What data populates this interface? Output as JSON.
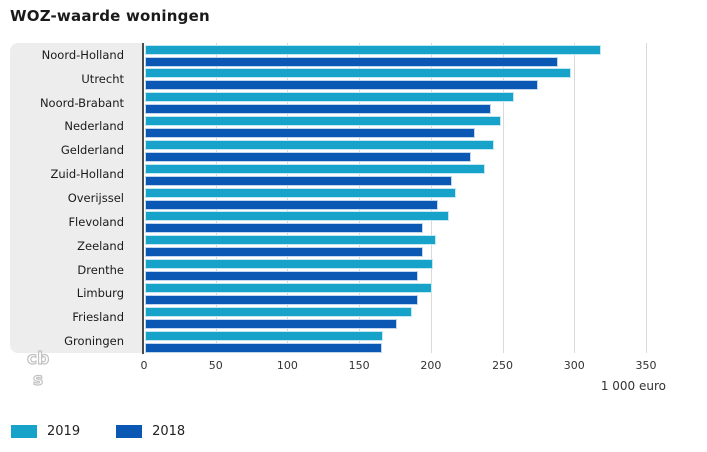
{
  "title": "WOZ-waarde woningen",
  "unit_label": "1 000 euro",
  "legend": {
    "items": [
      {
        "label": "2019",
        "color": "#17a3c9"
      },
      {
        "label": "2018",
        "color": "#0a58b4"
      }
    ]
  },
  "logo": {
    "name": "cbs-logo",
    "color": "#c2c2c2"
  },
  "colors": {
    "series_2019": "#17a3c9",
    "series_2018": "#0a58b4",
    "panel_bg": "#ededed",
    "gridline": "#d9d9d9",
    "axis_line": "#4d4d4d"
  },
  "chart_data": {
    "type": "bar",
    "orientation": "horizontal",
    "title": "WOZ-waarde woningen",
    "xlabel": "1 000 euro",
    "ylabel": "",
    "xlim": [
      0,
      350
    ],
    "xticks": [
      0,
      50,
      100,
      150,
      200,
      250,
      300,
      350
    ],
    "grid": true,
    "legend_position": "bottom-left",
    "categories": [
      "Noord-Holland",
      "Utrecht",
      "Noord-Brabant",
      "Nederland",
      "Gelderland",
      "Zuid-Holland",
      "Overijssel",
      "Flevoland",
      "Zeeland",
      "Drenthe",
      "Limburg",
      "Friesland",
      "Groningen"
    ],
    "series": [
      {
        "name": "2019",
        "color": "#17a3c9",
        "values": [
          318,
          297,
          257,
          248,
          243,
          237,
          217,
          212,
          203,
          201,
          200,
          186,
          166
        ]
      },
      {
        "name": "2018",
        "color": "#0a58b4",
        "values": [
          288,
          274,
          241,
          230,
          227,
          214,
          204,
          194,
          194,
          190,
          190,
          176,
          165
        ]
      }
    ]
  }
}
